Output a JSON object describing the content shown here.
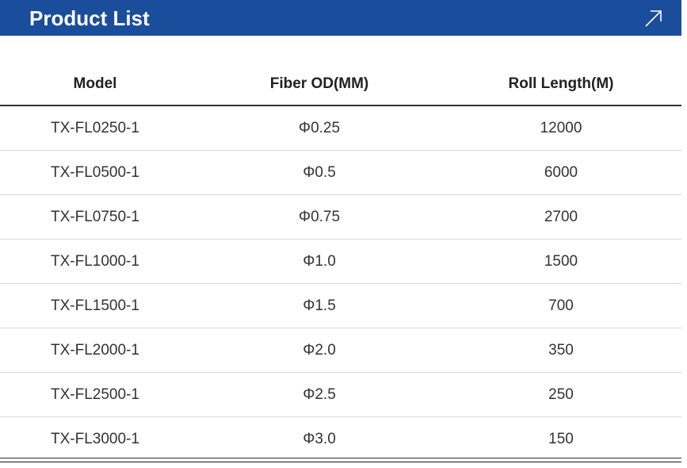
{
  "header": {
    "title": "Product List"
  },
  "table": {
    "columns": [
      "Model",
      "Fiber OD(MM)",
      "Roll Length(M)"
    ],
    "rows": [
      [
        "TX-FL0250-1",
        "Φ0.25",
        12000
      ],
      [
        "TX-FL0500-1",
        "Φ0.5",
        6000
      ],
      [
        "TX-FL0750-1",
        "Φ0.75",
        2700
      ],
      [
        "TX-FL1000-1",
        "Φ1.0",
        1500
      ],
      [
        "TX-FL1500-1",
        "Φ1.5",
        700
      ],
      [
        "TX-FL2000-1",
        "Φ2.0",
        350
      ],
      [
        "TX-FL2500-1",
        "Φ2.5",
        250
      ],
      [
        "TX-FL3000-1",
        "Φ3.0",
        150
      ]
    ]
  }
}
